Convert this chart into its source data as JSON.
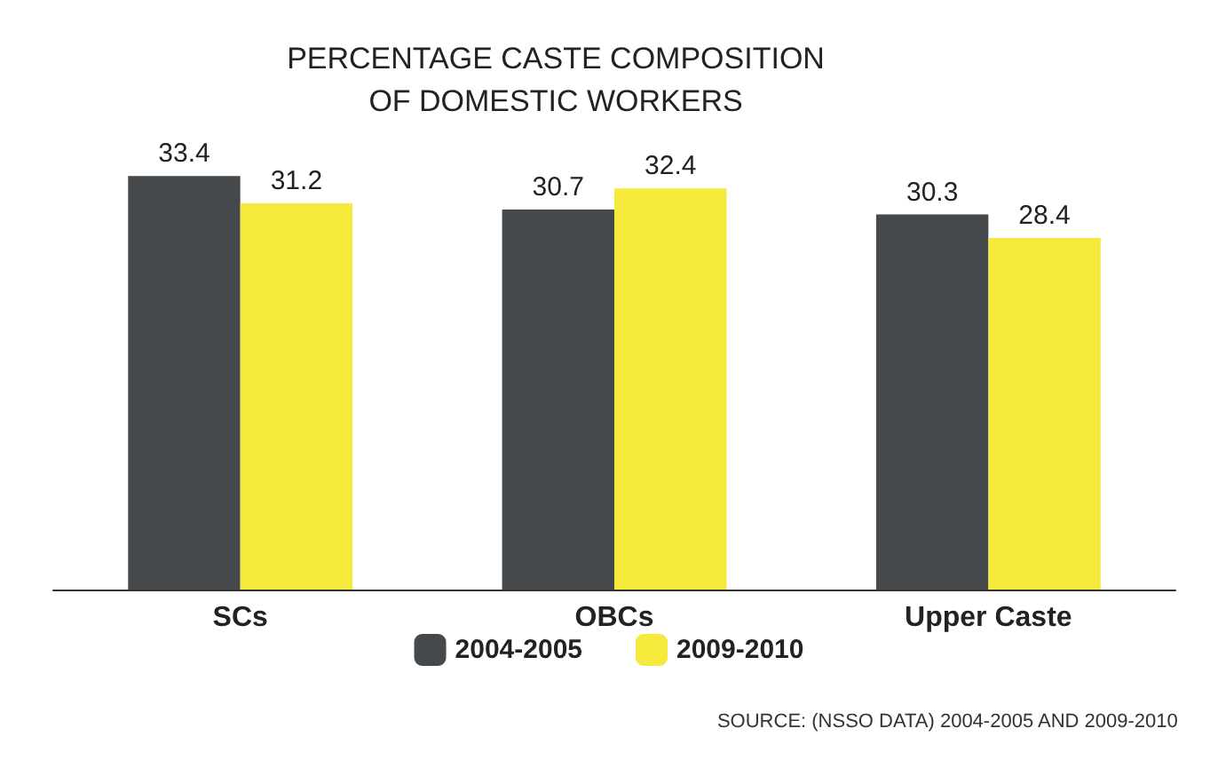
{
  "chart_data": {
    "type": "bar",
    "title": "PERCENTAGE CASTE COMPOSITION\nOF DOMESTIC WORKERS",
    "categories": [
      "SCs",
      "OBCs",
      "Upper Caste"
    ],
    "series": [
      {
        "name": "2004-2005",
        "color": "#46494b",
        "values": [
          33.4,
          30.7,
          30.3
        ]
      },
      {
        "name": "2009-2010",
        "color": "#f5ea3b",
        "values": [
          31.2,
          32.4,
          28.4
        ]
      }
    ],
    "data_labels": true,
    "legend": "bottom",
    "annotations": [
      "SOURCE: (NSSO DATA) 2004-2005 AND 2009-2010"
    ]
  }
}
